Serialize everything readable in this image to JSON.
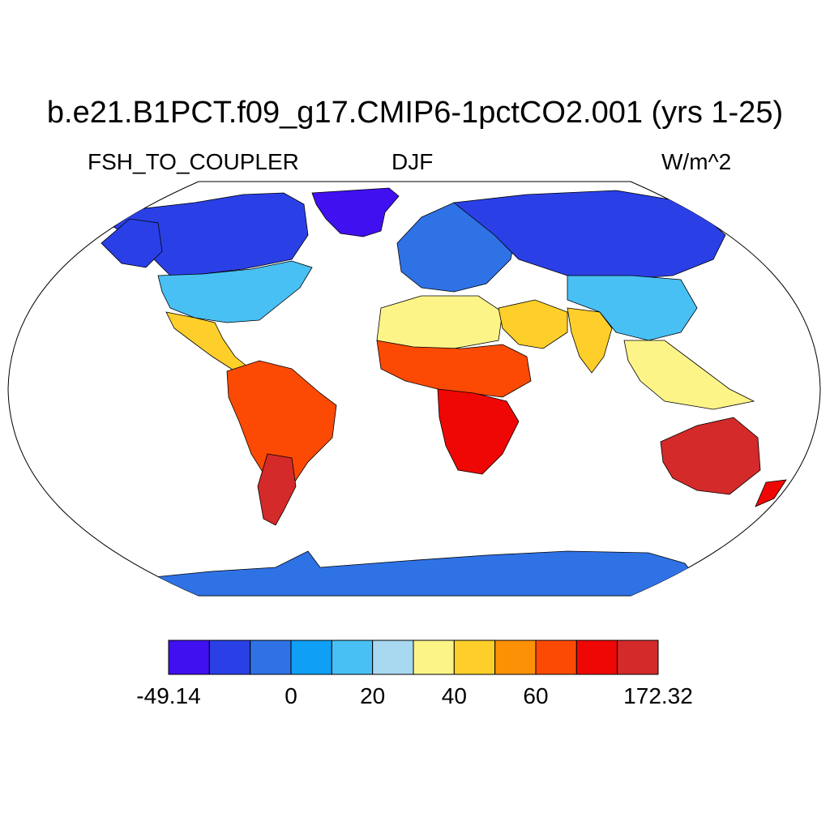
{
  "title": "b.e21.B1PCT.f09_g17.CMIP6-1pctCO2.001 (yrs 1-25)",
  "left_subtitle": "FSH_TO_COUPLER",
  "center_subtitle": "DJF",
  "right_subtitle": "W/m^2",
  "colorbar": {
    "colors": [
      "#4010f0",
      "#2a40e6",
      "#2f72e6",
      "#0fa0f6",
      "#48c0f4",
      "#a8d8f0",
      "#fdf488",
      "#fecf2a",
      "#fd9105",
      "#fc4a04",
      "#ee0704",
      "#d42a2a"
    ],
    "labels": [
      "-49.14",
      "0",
      "20",
      "40",
      "60",
      "172.32"
    ],
    "label_boundaries": [
      0,
      3,
      5,
      7,
      9,
      12
    ]
  },
  "regions": [
    {
      "name": "greenland",
      "bin": 0
    },
    {
      "name": "canada-north",
      "bin": 1
    },
    {
      "name": "alaska",
      "bin": 1
    },
    {
      "name": "usa",
      "bin": 4
    },
    {
      "name": "mexico",
      "bin": 7
    },
    {
      "name": "south-america",
      "bin": 9
    },
    {
      "name": "patagonia",
      "bin": 11
    },
    {
      "name": "europe",
      "bin": 2
    },
    {
      "name": "russia",
      "bin": 1
    },
    {
      "name": "north-africa",
      "bin": 6
    },
    {
      "name": "sahel",
      "bin": 9
    },
    {
      "name": "southern-africa",
      "bin": 10
    },
    {
      "name": "middle-east",
      "bin": 7
    },
    {
      "name": "india",
      "bin": 7
    },
    {
      "name": "china",
      "bin": 4
    },
    {
      "name": "southeast-asia",
      "bin": 6
    },
    {
      "name": "australia",
      "bin": 11
    },
    {
      "name": "new-zealand",
      "bin": 10
    },
    {
      "name": "antarctica",
      "bin": 2
    }
  ]
}
